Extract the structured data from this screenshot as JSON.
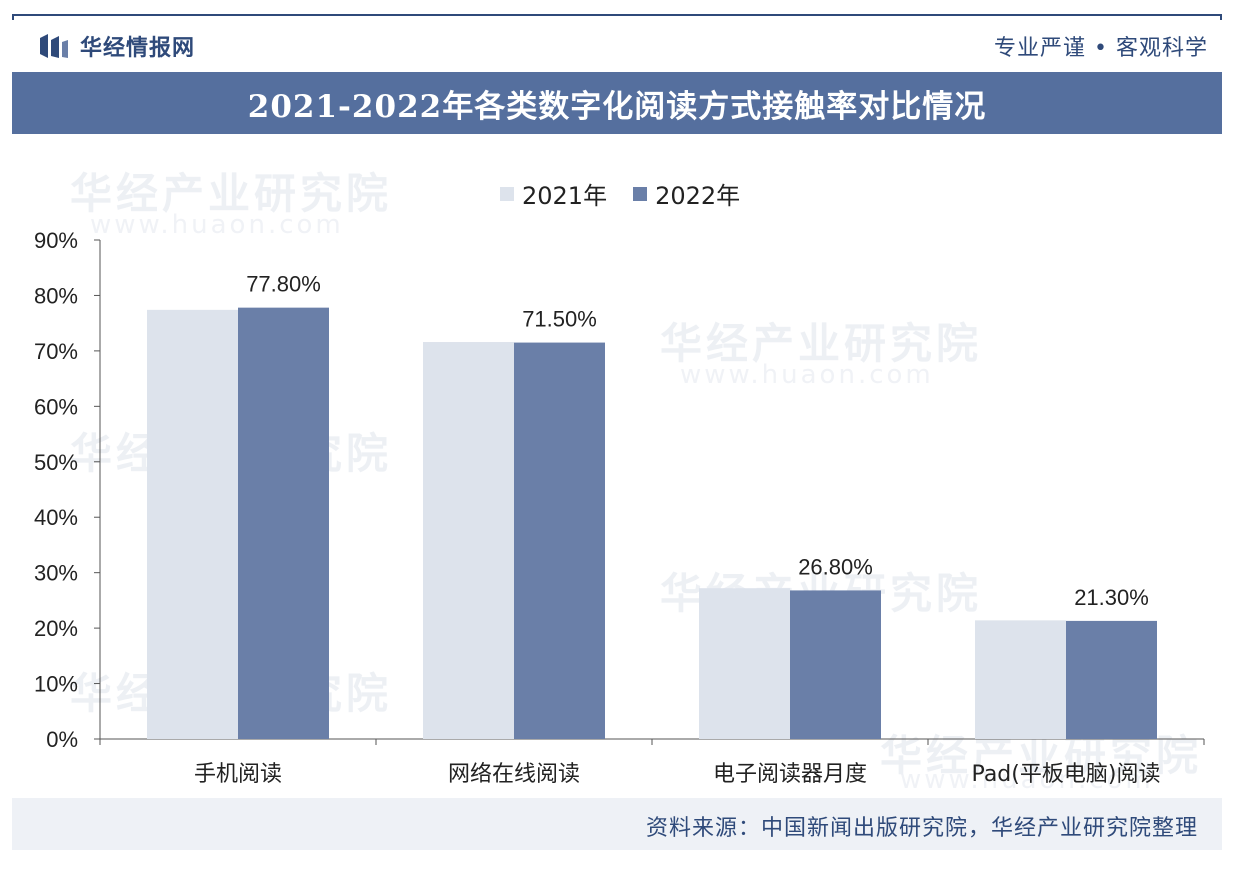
{
  "header": {
    "brand_name": "华经情报网",
    "slogan": "专业严谨 • 客观科学",
    "title": "2021-2022年各类数字化阅读方式接触率对比情况"
  },
  "watermark": {
    "text": "华经产业研究院",
    "url": "www.huaon.com"
  },
  "footer": {
    "source": "资料来源：中国新闻出版研究院，华经产业研究院整理"
  },
  "colors": {
    "series_2021": "#dde3ec",
    "series_2022": "#6a7fa8",
    "title_bar": "#556f9e",
    "brand": "#2f4a7a"
  },
  "chart_data": {
    "type": "bar",
    "title": "2021-2022年各类数字化阅读方式接触率对比情况",
    "categories": [
      "手机阅读",
      "网络在线阅读",
      "电子阅读器月度",
      "Pad(平板电脑)阅读"
    ],
    "series": [
      {
        "name": "2021年",
        "values": [
          77.4,
          71.6,
          27.2,
          21.4
        ]
      },
      {
        "name": "2022年",
        "values": [
          77.8,
          71.5,
          26.8,
          21.3
        ]
      }
    ],
    "data_labels": [
      "77.80%",
      "71.50%",
      "26.80%",
      "21.30%"
    ],
    "y_ticks": [
      "0%",
      "10%",
      "20%",
      "30%",
      "40%",
      "50%",
      "60%",
      "70%",
      "80%",
      "90%"
    ],
    "ylim": [
      0,
      90
    ],
    "legend_position": "top-center",
    "grid": false
  }
}
